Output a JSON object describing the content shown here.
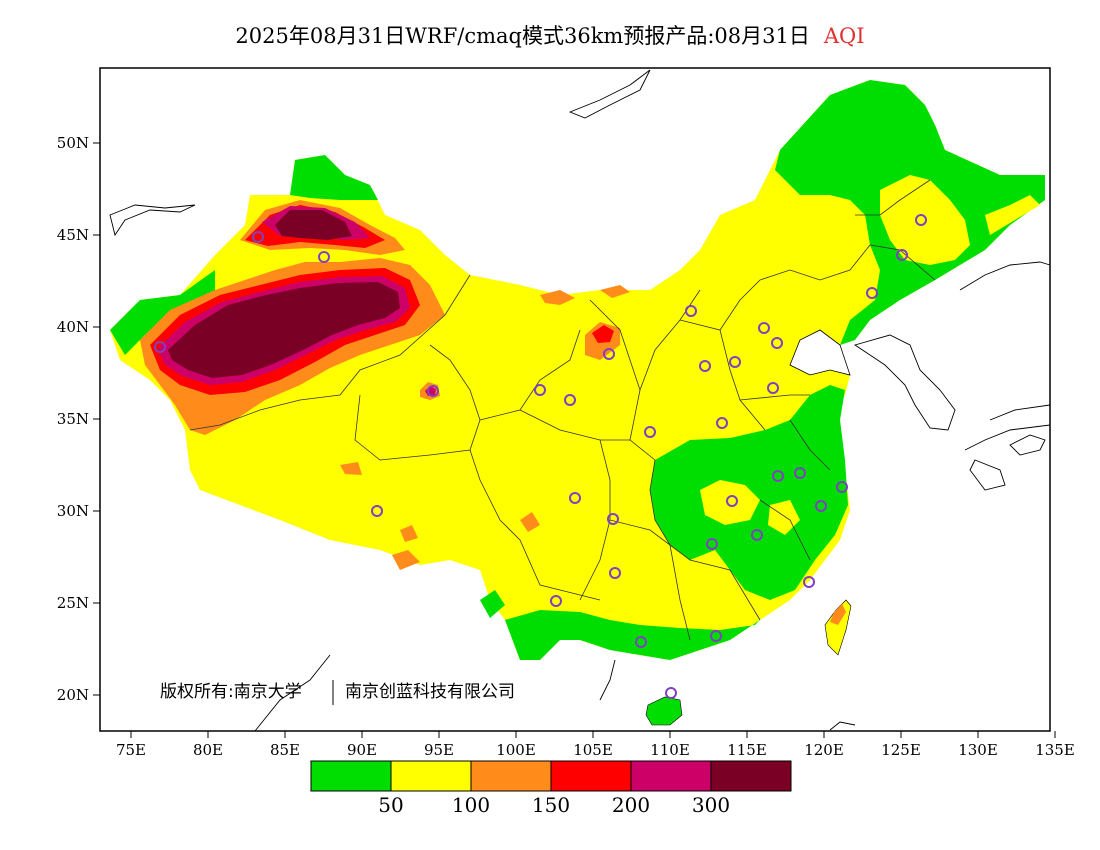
{
  "title": {
    "main": "2025年08月31日WRF/cmaq模式36km预报产品:08月31日",
    "variable": "AQI"
  },
  "axes": {
    "x_ticks": [
      "75E",
      "80E",
      "85E",
      "90E",
      "95E",
      "100E",
      "105E",
      "110E",
      "115E",
      "120E",
      "125E",
      "130E",
      "135E"
    ],
    "y_ticks": [
      "50N",
      "45N",
      "40N",
      "35N",
      "30N",
      "25N",
      "20N"
    ]
  },
  "legend": {
    "colors": [
      "#00dd00",
      "#ffff00",
      "#ff8c1a",
      "#ff0000",
      "#cc0066",
      "#7a0026"
    ],
    "labels": [
      "50",
      "100",
      "150",
      "200",
      "300"
    ]
  },
  "copyright": {
    "left": "版权所有:南京大学",
    "right": "南京创蓝科技有限公司"
  },
  "colors": {
    "green": "#00dd00",
    "yellow": "#ffff00",
    "orange": "#ff8c1a",
    "red": "#ff0000",
    "magenta": "#cc0066",
    "maroon": "#7a0026",
    "station": "#8040c0"
  }
}
